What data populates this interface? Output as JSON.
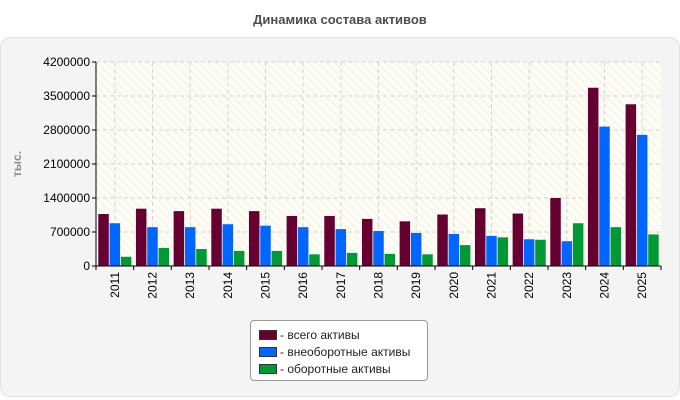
{
  "chart_data": {
    "type": "bar",
    "title": "Динамика состава активов",
    "ylabel": "тыс.",
    "xlabel": "",
    "ylim": [
      0,
      4200000
    ],
    "yticks": [
      0,
      700000,
      1400000,
      2100000,
      2800000,
      3500000,
      4200000
    ],
    "grid": true,
    "legend_position": "bottom",
    "categories": [
      "2011",
      "2012",
      "2013",
      "2014",
      "2015",
      "2016",
      "2017",
      "2018",
      "2019",
      "2020",
      "2021",
      "2022",
      "2023",
      "2024",
      "2025"
    ],
    "series": [
      {
        "name": "- всего активы",
        "color": "#660033",
        "values": [
          1070000,
          1180000,
          1130000,
          1180000,
          1130000,
          1030000,
          1030000,
          970000,
          920000,
          1060000,
          1190000,
          1080000,
          1400000,
          3670000,
          3330000
        ]
      },
      {
        "name": "- внеоборотные активы",
        "color": "#0066ff",
        "values": [
          880000,
          800000,
          800000,
          860000,
          830000,
          800000,
          760000,
          720000,
          680000,
          660000,
          620000,
          550000,
          510000,
          2870000,
          2700000
        ]
      },
      {
        "name": "- оборотные активы",
        "color": "#009933",
        "values": [
          190000,
          370000,
          350000,
          310000,
          310000,
          240000,
          270000,
          250000,
          240000,
          430000,
          590000,
          540000,
          880000,
          800000,
          650000
        ]
      }
    ]
  }
}
